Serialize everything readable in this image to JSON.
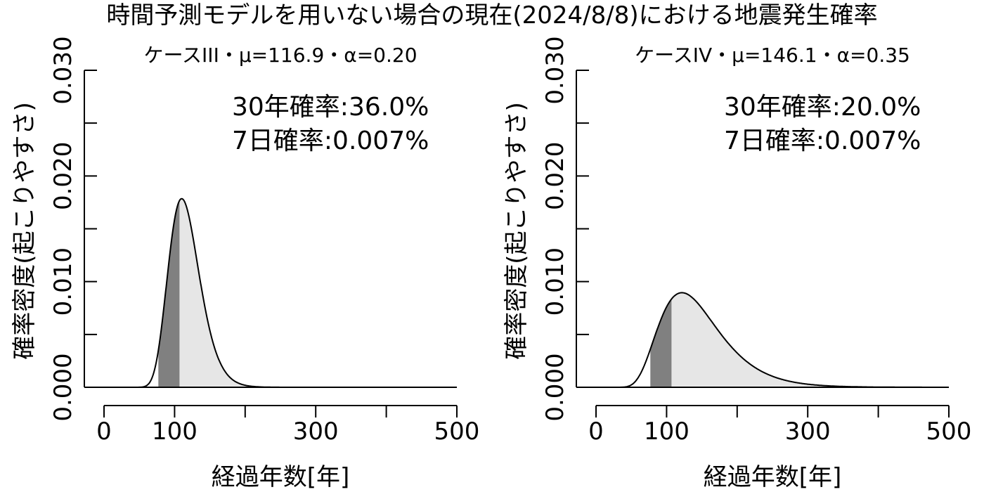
{
  "title": "時間予測モデルを用いない場合の現在(2024/8/8)における地震発生確率",
  "chart_data": [
    {
      "type": "area",
      "title": "ケースIII・μ=116.9・α=0.20",
      "xlabel": "経過年数[年]",
      "ylabel": "確率密度(起こりやすさ)",
      "xlim": [
        0,
        500
      ],
      "ylim": [
        0,
        0.03
      ],
      "xticks": [
        0,
        100,
        200,
        300,
        400,
        500
      ],
      "xtick_labels": [
        "0",
        "100",
        "",
        "300",
        "",
        "500"
      ],
      "yticks": [
        0,
        0.005,
        0.01,
        0.015,
        0.02,
        0.025,
        0.03
      ],
      "ytick_labels": [
        "0.000",
        "",
        "0.010",
        "",
        "0.020",
        "",
        "0.030"
      ],
      "distribution": "BPT",
      "mu": 116.9,
      "alpha": 0.2,
      "elapsed_shade_range": [
        77,
        107
      ],
      "future_shade_start": 107,
      "annotations": [
        "30年確率:36.0%",
        "7日確率:0.007%"
      ],
      "colors": {
        "elapsed": "#808080",
        "future": "#e6e6e6",
        "curve": "#000000"
      }
    },
    {
      "type": "area",
      "title": "ケースIV・μ=146.1・α=0.35",
      "xlabel": "経過年数[年]",
      "ylabel": "確率密度(起こりやすさ)",
      "xlim": [
        0,
        500
      ],
      "ylim": [
        0,
        0.03
      ],
      "xticks": [
        0,
        100,
        200,
        300,
        400,
        500
      ],
      "xtick_labels": [
        "0",
        "100",
        "",
        "300",
        "",
        "500"
      ],
      "yticks": [
        0,
        0.005,
        0.01,
        0.015,
        0.02,
        0.025,
        0.03
      ],
      "ytick_labels": [
        "0.000",
        "",
        "0.010",
        "",
        "0.020",
        "",
        "0.030"
      ],
      "distribution": "BPT",
      "mu": 146.1,
      "alpha": 0.35,
      "elapsed_shade_range": [
        77,
        107
      ],
      "future_shade_start": 107,
      "annotations": [
        "30年確率:20.0%",
        "7日確率:0.007%"
      ],
      "colors": {
        "elapsed": "#808080",
        "future": "#e6e6e6",
        "curve": "#000000"
      }
    }
  ]
}
